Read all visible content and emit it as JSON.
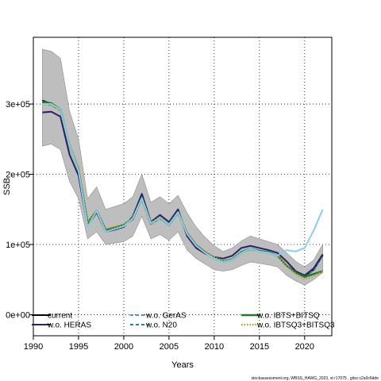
{
  "chart_data": {
    "type": "line",
    "xlabel": "Years",
    "ylabel": "SSB",
    "xlim": [
      1990,
      2023
    ],
    "ylim": [
      -30000,
      395000
    ],
    "x_ticks": [
      1990,
      1995,
      2000,
      2005,
      2010,
      2015,
      2020
    ],
    "y_ticks": [
      0,
      100000,
      200000,
      300000
    ],
    "y_tick_labels": [
      "0e+00",
      "1e+05",
      "2e+05",
      "3e+05"
    ],
    "grid": true,
    "legend_position": "bottom",
    "x": [
      1991,
      1992,
      1993,
      1994,
      1995,
      1996,
      1997,
      1998,
      1999,
      2000,
      2001,
      2002,
      2003,
      2004,
      2005,
      2006,
      2007,
      2008,
      2009,
      2010,
      2011,
      2012,
      2013,
      2014,
      2015,
      2016,
      2017,
      2018,
      2019,
      2020,
      2021,
      2022
    ],
    "confidence_band": {
      "upper": [
        378000,
        375000,
        365000,
        290000,
        250000,
        165000,
        182000,
        150000,
        154000,
        158000,
        168000,
        200000,
        160000,
        168000,
        158000,
        170000,
        145000,
        125000,
        110000,
        98000,
        90000,
        95000,
        105000,
        112000,
        108000,
        104000,
        100000,
        88000,
        76000,
        68000,
        78000,
        100000
      ],
      "lower": [
        240000,
        243000,
        235000,
        190000,
        165000,
        108000,
        118000,
        100000,
        102000,
        104000,
        112000,
        140000,
        108000,
        114000,
        106000,
        118000,
        92000,
        80000,
        72000,
        64000,
        62000,
        64000,
        70000,
        75000,
        73000,
        71000,
        68000,
        56000,
        48000,
        42000,
        50000,
        60000
      ]
    },
    "series": [
      {
        "name": "current",
        "color": "#000000",
        "style": "solid",
        "width": 2,
        "values": [
          305000,
          300000,
          292000,
          240000,
          205000,
          130000,
          148000,
          120000,
          124000,
          127000,
          136000,
          166000,
          130000,
          138000,
          128000,
          146000,
          115000,
          98000,
          88000,
          80000,
          75000,
          78000,
          88000,
          94000,
          90000,
          88000,
          84000,
          70000,
          60000,
          55000,
          64000,
          85000
        ]
      },
      {
        "name": "w.o. HERAS",
        "color": "#2a1e6e",
        "style": "solid",
        "width": 2,
        "values": [
          288000,
          289000,
          282000,
          228000,
          198000,
          126000,
          146000,
          118000,
          121000,
          125000,
          140000,
          172000,
          132000,
          142000,
          132000,
          150000,
          112000,
          95000,
          87000,
          82000,
          80000,
          84000,
          95000,
          98000,
          95000,
          92000,
          88000,
          76000,
          62000,
          56000,
          66000,
          86000
        ]
      },
      {
        "name": "w.o. GerAS",
        "color": "#4a8fd0",
        "style": "dashed",
        "width": 2,
        "values": [
          302000,
          300000,
          292000,
          240000,
          205000,
          130000,
          148000,
          120000,
          124000,
          127000,
          136000,
          166000,
          130000,
          138000,
          128000,
          146000,
          115000,
          98000,
          88000,
          80000,
          75000,
          78000,
          88000,
          94000,
          90000,
          88000,
          84000,
          70000,
          60000,
          55000,
          64000,
          85000
        ]
      },
      {
        "name": "w.o. N20",
        "color": "#2a8a7a",
        "style": "dashed",
        "width": 2,
        "values": [
          301000,
          299000,
          291000,
          239000,
          205000,
          130000,
          147000,
          120000,
          123000,
          127000,
          136000,
          165000,
          129000,
          137000,
          128000,
          145000,
          115000,
          98000,
          88000,
          80000,
          75000,
          78000,
          88000,
          93000,
          90000,
          88000,
          84000,
          70000,
          60000,
          55000,
          63000,
          84000
        ]
      },
      {
        "name": "w.o. IBTS+BITSQ",
        "color": "#1f7a30",
        "style": "solid",
        "width": 2.5,
        "values": [
          303000,
          301000,
          292000,
          240000,
          206000,
          131000,
          148000,
          121000,
          124000,
          128000,
          137000,
          166000,
          130000,
          138000,
          128000,
          146000,
          116000,
          99000,
          89000,
          81000,
          76000,
          79000,
          89000,
          94000,
          91000,
          89000,
          84000,
          70000,
          60000,
          54000,
          58000,
          62000
        ]
      },
      {
        "name": "w.o. IBTSQ3+BITSQ3",
        "color": "#b5a22a",
        "style": "dotted",
        "width": 2.5,
        "values": [
          300000,
          298000,
          290000,
          242000,
          210000,
          132000,
          148000,
          122000,
          125000,
          128000,
          138000,
          165000,
          131000,
          139000,
          129000,
          146000,
          117000,
          100000,
          90000,
          82000,
          77000,
          79000,
          88000,
          93000,
          90000,
          88000,
          84000,
          70000,
          58000,
          51000,
          55000,
          62000
        ]
      },
      {
        "name": "",
        "color": "#87ceeb",
        "style": "solid",
        "width": 2,
        "values": [
          300000,
          300000,
          292000,
          240000,
          205000,
          125000,
          148000,
          118000,
          122000,
          126000,
          137000,
          166000,
          130000,
          138000,
          128000,
          146000,
          115000,
          98000,
          88000,
          80000,
          75000,
          78000,
          88000,
          94000,
          90000,
          88000,
          84000,
          92000,
          90000,
          95000,
          120000,
          150000
        ]
      }
    ]
  },
  "footer": "stockassessment.org, WBSS_HAWG_2023, st r17075 , gitsc:c2a0c6dde"
}
